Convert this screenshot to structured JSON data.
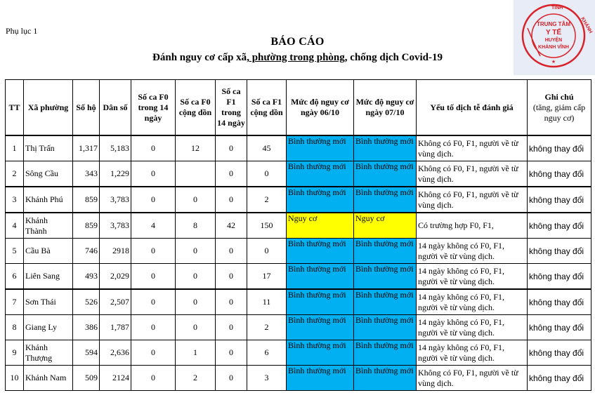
{
  "header": {
    "appendix": "Phụ lục 1",
    "title": "BÁO CÁO",
    "subtitle_before": "Đánh nguy cơ cấp xã",
    "subtitle_underlined": ", phường trong phòng,",
    "subtitle_after": " chống dịch Covid-19"
  },
  "stamp": {
    "top_text": "TỈNH",
    "right_text": "KHÁNH",
    "line1": "TRUNG TÂM",
    "line2": "Y TẾ",
    "line3": "HUYỆN",
    "line4": "KHÁNH VĨNH",
    "color": "#d9222a"
  },
  "table": {
    "headers": {
      "tt": "TT",
      "commune": "Xã phường",
      "households": "Số hộ",
      "population": "Dân số",
      "f0_14": "Số ca F0 trong 14 ngày",
      "f0_cum": "Số ca F0 cộng dồn",
      "f1_14": "Số ca F1 trong 14 ngày",
      "f1_cum": "Số ca F1 cộng dồn",
      "level_0610": "Mức độ nguy cơ ngày 06/10",
      "level_0710": "Mức độ nguy cơ ngày 07/10",
      "factors": "Yếu tố dịch tễ đánh giá",
      "note_title": "Ghi chú",
      "note_sub": "(tăng, giảm cấp nguy cơ)"
    },
    "rows": [
      {
        "tt": "1",
        "commune": "Thị Trấn",
        "households": "1,317",
        "population": "5,183",
        "f0_14": "0",
        "f0_cum": "12",
        "f1_14": "0",
        "f1_cum": "45",
        "level_0610": "Bình thường mới",
        "level_0710": "Bình thường mới",
        "factors": "Không có F0, F1, người về từ vùng dịch.",
        "note": "không thay đổi"
      },
      {
        "tt": "2",
        "commune": "Sông Cầu",
        "households": "343",
        "population": "1,229",
        "f0_14": "0",
        "f0_cum": "",
        "f1_14": "0",
        "f1_cum": "0",
        "level_0610": "Bình thường mới",
        "level_0710": "Bình thường mới",
        "factors": "Không có F0, F1, người về từ vùng dịch.",
        "note": "không thay đổi"
      },
      {
        "tt": "3",
        "commune": "Khánh Phú",
        "households": "859",
        "population": "3,783",
        "f0_14": "0",
        "f0_cum": "0",
        "f1_14": "0",
        "f1_cum": "2",
        "level_0610": "Bình thường mới",
        "level_0710": "Bình thường mới",
        "factors": "Không có F0, F1, người về từ vùng dịch.",
        "note": "không thay đổi"
      },
      {
        "tt": "4",
        "commune": "Khánh Thành",
        "households": "859",
        "population": "3,783",
        "f0_14": "4",
        "f0_cum": "8",
        "f1_14": "42",
        "f1_cum": "150",
        "level_0610": "Nguy cơ",
        "level_0710": "Nguy cơ",
        "factors": "Có trường hợp F0, F1,",
        "note": "không thay đổi"
      },
      {
        "tt": "5",
        "commune": "Cầu Bà",
        "households": "746",
        "population": "2918",
        "f0_14": "0",
        "f0_cum": "0",
        "f1_14": "0",
        "f1_cum": "0",
        "level_0610": "Bình thường mới",
        "level_0710": "Bình thường mới",
        "factors": "14 ngày không có F0, F1, người về từ vùng dịch.",
        "note": "không thay đổi"
      },
      {
        "tt": "6",
        "commune": "Liên Sang",
        "households": "493",
        "population": "2,029",
        "f0_14": "0",
        "f0_cum": "0",
        "f1_14": "0",
        "f1_cum": "17",
        "level_0610": "Bình thường mới",
        "level_0710": "Bình thường mới",
        "factors": "14 ngày không có F0, F1, người về từ vùng dịch.",
        "note": "không thay đổi"
      },
      {
        "tt": "7",
        "commune": "Sơn Thái",
        "households": "526",
        "population": "2,507",
        "f0_14": "0",
        "f0_cum": "0",
        "f1_14": "0",
        "f1_cum": "11",
        "level_0610": "Bình thường mới",
        "level_0710": "Bình thường mới",
        "factors": "14 ngày không có F0, F1, người về từ vùng dịch.",
        "note": "không thay đổi"
      },
      {
        "tt": "8",
        "commune": "Giang Ly",
        "households": "386",
        "population": "1,787",
        "f0_14": "0",
        "f0_cum": "0",
        "f1_14": "0",
        "f1_cum": "2",
        "level_0610": "Bình thường mới",
        "level_0710": "Bình thường mới",
        "factors": "14 ngày không có F0, F1, người về từ vùng dịch.",
        "note": "không thay đổi"
      },
      {
        "tt": "9",
        "commune": "Khánh Thượng",
        "households": "594",
        "population": "2,636",
        "f0_14": "0",
        "f0_cum": "1",
        "f1_14": "0",
        "f1_cum": "6",
        "level_0610": "Bình thường mới",
        "level_0710": "Bình thường mới",
        "factors": "14 ngày không có F0, F1, người về từ vùng dịch.",
        "note": "không thay đổi"
      },
      {
        "tt": "10",
        "commune": "Khánh Nam",
        "households": "509",
        "population": "2124",
        "f0_14": "0",
        "f0_cum": "2",
        "f1_14": "0",
        "f1_cum": "3",
        "level_0610": "Bình thường mới",
        "level_0710": "Bình thường mới",
        "factors": "Không có F0, F1, người về từ vùng dịch.",
        "note": "không thay đổi"
      }
    ]
  },
  "colors": {
    "normal_level": "#00b0f0",
    "risk_level": "#ffff00"
  }
}
